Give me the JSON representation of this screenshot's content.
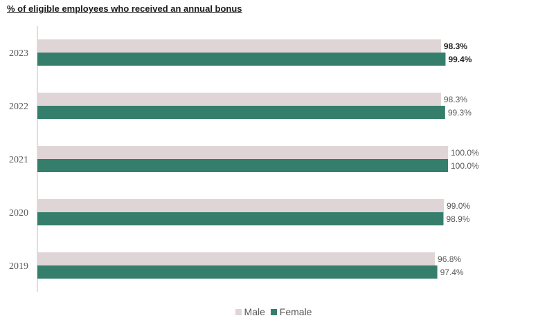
{
  "colors": {
    "male": "#dfd5d7",
    "female": "#357e6c",
    "axis": "#bfbfbf",
    "label": "#595959",
    "label_bold": "#262626"
  },
  "chart_data": {
    "type": "bar",
    "orientation": "horizontal",
    "title": "% of eligible employees who received an annual bonus",
    "categories": [
      "2023",
      "2022",
      "2021",
      "2020",
      "2019"
    ],
    "series": [
      {
        "name": "Male",
        "values": [
          98.3,
          98.3,
          100.0,
          99.0,
          96.8
        ],
        "labels": [
          "98.3%",
          "98.3%",
          "100.0%",
          "99.0%",
          "96.8%"
        ]
      },
      {
        "name": "Female",
        "values": [
          99.4,
          99.3,
          100.0,
          98.9,
          97.4
        ],
        "labels": [
          "99.4%",
          "99.3%",
          "100.0%",
          "98.9%",
          "97.4%"
        ]
      }
    ],
    "bold_category": "2023",
    "xlim": [
      0,
      100
    ],
    "legend": "bottom-center",
    "grid": false
  }
}
